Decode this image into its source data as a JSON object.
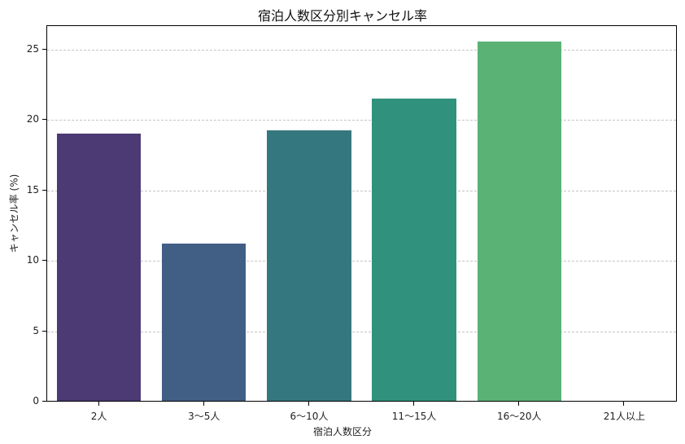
{
  "chart_data": {
    "type": "bar",
    "title": "宿泊人数区分別キャンセル率",
    "xlabel": "宿泊人数区分",
    "ylabel": "キャンセル率 (%)",
    "categories": [
      "2人",
      "3〜5人",
      "6〜10人",
      "11〜15人",
      "16〜20人",
      "21人以上"
    ],
    "values": [
      19.0,
      11.2,
      19.2,
      21.5,
      25.5,
      0
    ],
    "colors": [
      "#4b3a74",
      "#415e85",
      "#35777f",
      "#30927c",
      "#5bb275",
      "#8fcf6a"
    ],
    "ylim": [
      0,
      26.74
    ],
    "yticks": [
      0,
      5,
      10,
      15,
      20,
      25
    ],
    "grid": "y-dashed",
    "legend": null
  }
}
